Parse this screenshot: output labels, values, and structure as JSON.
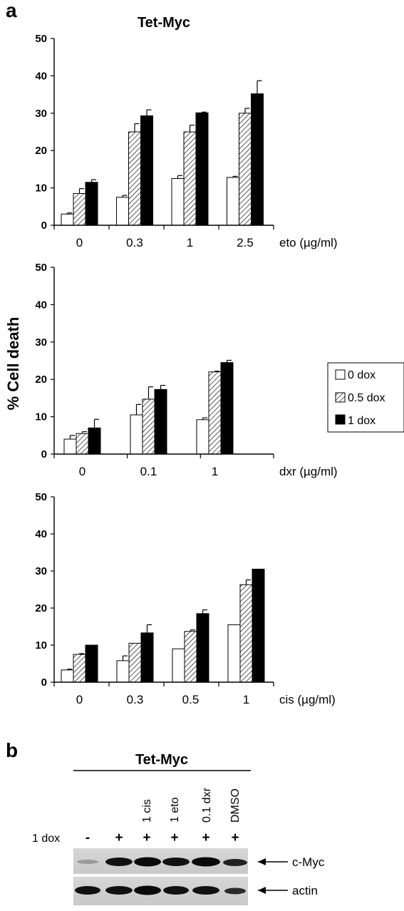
{
  "panel_labels": {
    "a": "a",
    "b": "b"
  },
  "y_axis_label": "% Cell death",
  "chart_data": [
    {
      "type": "bar",
      "title": "Tet-Myc",
      "xlabel": "eto (µg/ml)",
      "ylabel": "% Cell death",
      "ylim": [
        0,
        50
      ],
      "yticks": [
        "0",
        "10",
        "20",
        "30",
        "40",
        "50"
      ],
      "categories": [
        "0",
        "0.3",
        "1",
        "2.5"
      ],
      "series": [
        {
          "name": "0 dox",
          "fill": "white",
          "values": [
            3,
            7.5,
            12.5,
            12.8
          ],
          "errors": [
            0.3,
            0.5,
            0.8,
            0.3
          ]
        },
        {
          "name": "0.5 dox",
          "fill": "hatch",
          "values": [
            8.5,
            25,
            25,
            30
          ],
          "errors": [
            1.3,
            2.2,
            1.8,
            1.3
          ]
        },
        {
          "name": "1 dox",
          "fill": "black",
          "values": [
            11.5,
            29.3,
            30.1,
            35.2
          ],
          "errors": [
            0.7,
            1.6,
            0.2,
            3.5
          ]
        }
      ]
    },
    {
      "type": "bar",
      "title": "",
      "xlabel": "dxr (µg/ml)",
      "ylabel": "% Cell death",
      "ylim": [
        0,
        50
      ],
      "yticks": [
        "0",
        "10",
        "20",
        "30",
        "40",
        "50"
      ],
      "categories": [
        "0",
        "0.1",
        "1"
      ],
      "series": [
        {
          "name": "0 dox",
          "fill": "white",
          "values": [
            4,
            10.5,
            9.2
          ],
          "errors": [
            1,
            2.8,
            0.5
          ]
        },
        {
          "name": "0.5 dox",
          "fill": "hatch",
          "values": [
            5.5,
            14.7,
            22
          ],
          "errors": [
            0.5,
            3.3,
            0.2
          ]
        },
        {
          "name": "1 dox",
          "fill": "black",
          "values": [
            7,
            17.3,
            24.5
          ],
          "errors": [
            2.3,
            1.1,
            0.6
          ]
        }
      ]
    },
    {
      "type": "bar",
      "title": "",
      "xlabel": "cis (µg/ml)",
      "ylabel": "% Cell death",
      "ylim": [
        0,
        50
      ],
      "yticks": [
        "0",
        "10",
        "20",
        "30",
        "40",
        "50"
      ],
      "categories": [
        "0",
        "0.3",
        "0.5",
        "1"
      ],
      "series": [
        {
          "name": "0 dox",
          "fill": "white",
          "values": [
            3.3,
            5.8,
            9,
            15.5
          ],
          "errors": [
            0.2,
            1.3,
            0,
            0
          ]
        },
        {
          "name": "0.5 dox",
          "fill": "hatch",
          "values": [
            7.5,
            10.5,
            13.7,
            26.3
          ],
          "errors": [
            0.2,
            0,
            0.4,
            1.3
          ]
        },
        {
          "name": "1 dox",
          "fill": "black",
          "values": [
            10,
            13.3,
            18.5,
            30.5
          ],
          "errors": [
            0,
            2.2,
            1,
            0
          ]
        }
      ]
    }
  ],
  "legend": {
    "items": [
      "0 dox",
      "0.5 dox",
      "1 dox"
    ]
  },
  "blot": {
    "title": "Tet-Myc",
    "row_label": "1 dox",
    "lane_treatments": [
      "1 cis",
      "1 eto",
      "0.1 dxr",
      "DMSO"
    ],
    "lane_signs": [
      "-",
      "+",
      "+",
      "+",
      "+",
      "+"
    ],
    "band_labels": [
      "c-Myc",
      "actin"
    ]
  }
}
